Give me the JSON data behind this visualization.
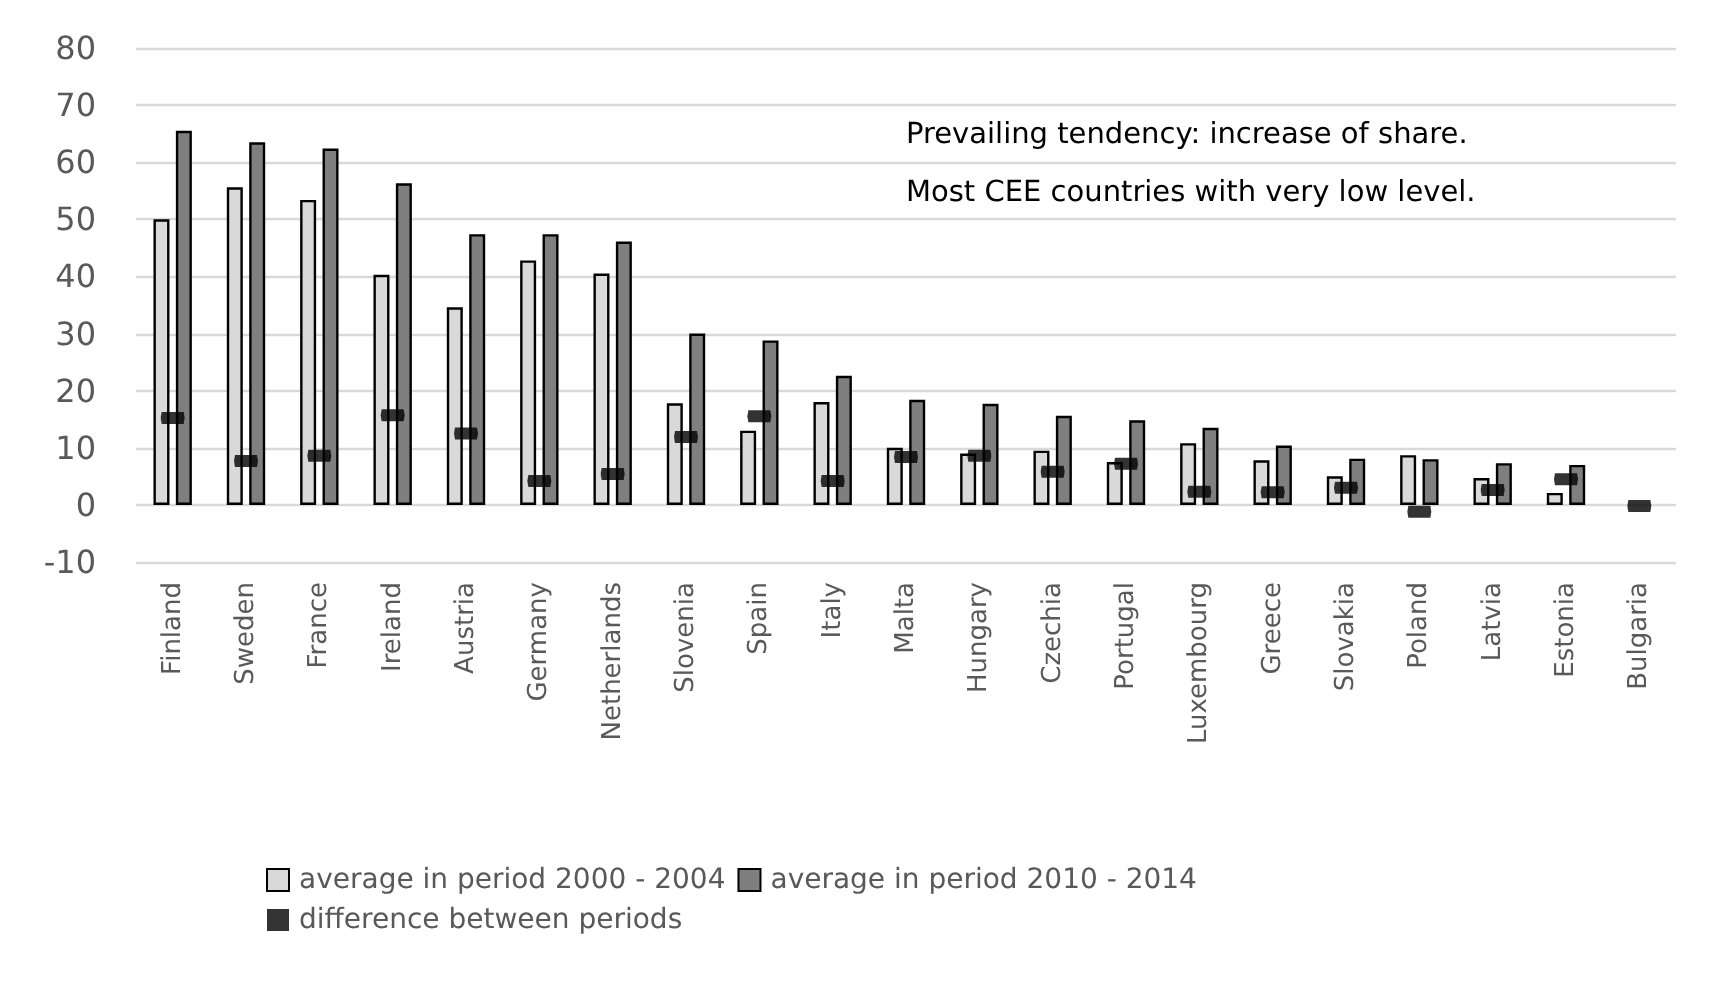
{
  "chart_data": {
    "type": "bar",
    "categories": [
      "Finland",
      "Sweden",
      "France",
      "Ireland",
      "Austria",
      "Germany",
      "Netherlands",
      "Slovenia",
      "Spain",
      "Italy",
      "Malta",
      "Hungary",
      "Czechia",
      "Portugal",
      "Luxembourg",
      "Greece",
      "Slovakia",
      "Poland",
      "Latvia",
      "Estonia",
      "Bulgaria"
    ],
    "series": [
      {
        "name": "average in period 2000 - 2004",
        "color": "#d9d9d9",
        "values": [
          50,
          55.6,
          53.4,
          40.3,
          34.6,
          42.8,
          40.5,
          17.8,
          13,
          18,
          10,
          9,
          9.5,
          7.5,
          10.8,
          7.8,
          5,
          8.7,
          4.7,
          2.1,
          0
        ]
      },
      {
        "name": "average in period 2010 - 2014",
        "color": "#7f7f7f",
        "values": [
          65.5,
          63.5,
          62.4,
          56.3,
          47.4,
          47.4,
          46.1,
          30,
          28.8,
          22.6,
          18.4,
          17.7,
          15.6,
          14.8,
          13.5,
          10.4,
          8.1,
          8,
          7.3,
          7,
          0
        ]
      },
      {
        "name": "difference between periods",
        "type": "scatter",
        "color": "#000000",
        "values": [
          15.2,
          7.7,
          8.6,
          15.7,
          12.5,
          4.2,
          5.4,
          11.9,
          15.5,
          4.2,
          8.4,
          8.6,
          5.8,
          7.2,
          2.3,
          2.2,
          3,
          -1.2,
          2.6,
          4.5,
          -0.2
        ]
      }
    ],
    "ylim": [
      -10,
      80
    ],
    "yticks": [
      -10,
      0,
      10,
      20,
      30,
      40,
      50,
      60,
      70,
      80
    ],
    "grid": "y",
    "legend": "bottom",
    "annotations": [
      "Prevailing tendency: increase of share.",
      "Most CEE countries with very low level."
    ]
  }
}
